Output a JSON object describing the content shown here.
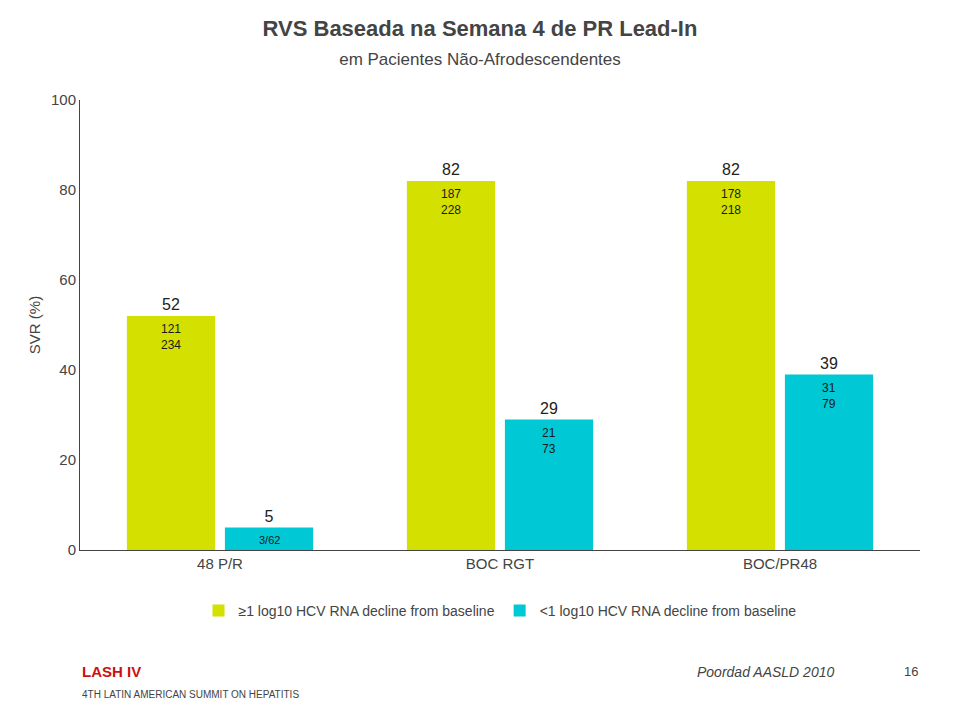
{
  "chart_data": {
    "type": "bar",
    "title": "RVS Baseada na Semana 4 de PR Lead-In",
    "subtitle": "em Pacientes Não-Afrodescendentes",
    "ylabel": "SVR (%)",
    "categories": [
      "48 P/R",
      "BOC RGT",
      "BOC/PR48"
    ],
    "series": [
      {
        "name": "≥1 log10 HCV RNA decline from baseline",
        "color": "#d4e000",
        "values": [
          52,
          82,
          82
        ],
        "sub_labels": [
          [
            "121",
            "234"
          ],
          [
            "187",
            "228"
          ],
          [
            "178",
            "218"
          ]
        ]
      },
      {
        "name": "<1 log10 HCV RNA decline from baseline",
        "color": "#00c8d4",
        "values": [
          5,
          29,
          39
        ],
        "sub_labels": [
          [
            "3/62"
          ],
          [
            "21",
            "73"
          ],
          [
            "31",
            "79"
          ]
        ]
      }
    ],
    "ylim": [
      0,
      100
    ],
    "yticks": [
      0,
      20,
      40,
      60,
      80,
      100
    ],
    "grid": false,
    "data_labels": true,
    "annotations": [
      "LASH IV",
      "4TH LATIN AMERICAN SUMMIT ON HEPATITIS",
      "Poordad AASLD 2010",
      "16"
    ]
  }
}
